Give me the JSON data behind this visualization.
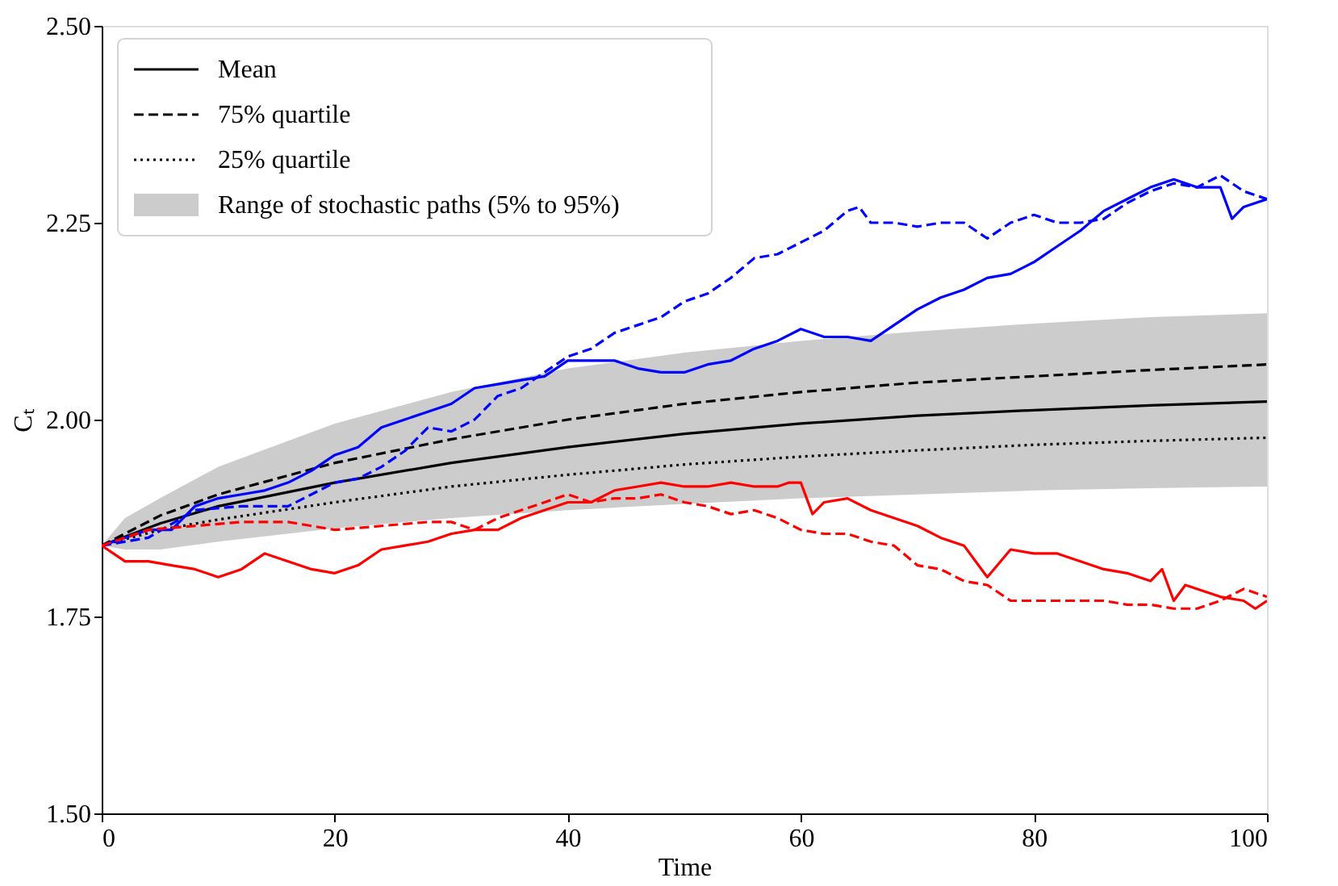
{
  "chart_data": {
    "type": "line",
    "xlabel": "Time",
    "ylabel": "Cₜ",
    "xlim": [
      0,
      100
    ],
    "xticks": [
      0,
      20,
      40,
      60,
      80,
      100
    ],
    "ylim": [
      1.5,
      2.5
    ],
    "yticks": [
      {
        "value": 1.5,
        "label": "1.50"
      },
      {
        "value": 1.75,
        "label": "1.75"
      },
      {
        "value": 2.0,
        "label": "2.00"
      },
      {
        "value": 2.25,
        "label": "2.25"
      },
      {
        "value": 2.5,
        "label": "2.50"
      }
    ],
    "grid": false,
    "legend": "top left",
    "series": [
      {
        "name": "Mean",
        "color": "#000000",
        "line_style": "solid",
        "x": [
          0,
          5,
          10,
          20,
          30,
          40,
          50,
          60,
          70,
          80,
          90,
          100
        ],
        "values": [
          1.84,
          1.868,
          1.89,
          1.92,
          1.945,
          1.965,
          1.982,
          1.995,
          2.005,
          2.012,
          2.018,
          2.023
        ]
      },
      {
        "name": "75% quartile",
        "color": "#000000",
        "line_style": "dashed",
        "x": [
          0,
          5,
          10,
          20,
          30,
          40,
          50,
          60,
          70,
          80,
          90,
          100
        ],
        "values": [
          1.84,
          1.878,
          1.905,
          1.945,
          1.975,
          2.0,
          2.02,
          2.035,
          2.047,
          2.055,
          2.063,
          2.07
        ]
      },
      {
        "name": "25% quartile",
        "color": "#000000",
        "line_style": "dotted",
        "x": [
          0,
          5,
          10,
          20,
          30,
          40,
          50,
          60,
          70,
          80,
          90,
          100
        ],
        "values": [
          1.84,
          1.86,
          1.873,
          1.895,
          1.915,
          1.93,
          1.943,
          1.953,
          1.961,
          1.968,
          1.973,
          1.977
        ]
      },
      {
        "name": "Range of stochastic paths (5% to 95%)",
        "type": "area",
        "color": "#cccccc",
        "x": [
          0,
          2,
          5,
          10,
          20,
          30,
          40,
          50,
          60,
          70,
          80,
          90,
          100
        ],
        "values": [
          null,
          null,
          null,
          null,
          null,
          null,
          null,
          null,
          null,
          null,
          null,
          null,
          null
        ],
        "lower": [
          1.84,
          1.835,
          1.835,
          1.845,
          1.862,
          1.875,
          1.885,
          1.893,
          1.9,
          1.905,
          1.91,
          1.913,
          1.915
        ],
        "upper": [
          1.84,
          1.875,
          1.9,
          1.94,
          1.995,
          2.035,
          2.065,
          2.085,
          2.1,
          2.112,
          2.122,
          2.13,
          2.135
        ]
      },
      {
        "color": "#0000ff",
        "line_style": "solid",
        "x": [
          0,
          2,
          4,
          6,
          8,
          10,
          12,
          14,
          16,
          18,
          20,
          22,
          24,
          26,
          28,
          30,
          32,
          34,
          36,
          38,
          40,
          42,
          44,
          46,
          48,
          50,
          52,
          54,
          56,
          58,
          60,
          62,
          64,
          66,
          68,
          70,
          72,
          74,
          76,
          78,
          80,
          82,
          84,
          86,
          88,
          90,
          92,
          94,
          96,
          97,
          98,
          100
        ],
        "values": [
          1.84,
          1.85,
          1.86,
          1.86,
          1.89,
          1.9,
          1.905,
          1.91,
          1.92,
          1.935,
          1.955,
          1.965,
          1.99,
          2.0,
          2.01,
          2.02,
          2.04,
          2.045,
          2.05,
          2.055,
          2.075,
          2.075,
          2.075,
          2.065,
          2.06,
          2.06,
          2.07,
          2.075,
          2.09,
          2.1,
          2.115,
          2.105,
          2.105,
          2.1,
          2.12,
          2.14,
          2.155,
          2.165,
          2.18,
          2.185,
          2.2,
          2.22,
          2.24,
          2.265,
          2.28,
          2.295,
          2.305,
          2.295,
          2.295,
          2.255,
          2.27,
          2.28
        ]
      },
      {
        "color": "#0000ff",
        "line_style": "dashed",
        "x": [
          0,
          4,
          8,
          12,
          14,
          16,
          18,
          20,
          22,
          24,
          26,
          28,
          30,
          32,
          34,
          36,
          38,
          40,
          42,
          44,
          46,
          48,
          50,
          52,
          54,
          56,
          58,
          60,
          62,
          64,
          65,
          66,
          68,
          70,
          72,
          74,
          76,
          78,
          80,
          82,
          84,
          86,
          88,
          90,
          92,
          94,
          96,
          98,
          100
        ],
        "values": [
          1.84,
          1.85,
          1.885,
          1.89,
          1.89,
          1.89,
          1.905,
          1.92,
          1.925,
          1.94,
          1.96,
          1.99,
          1.985,
          2.0,
          2.03,
          2.04,
          2.06,
          2.08,
          2.09,
          2.11,
          2.12,
          2.13,
          2.15,
          2.16,
          2.18,
          2.205,
          2.21,
          2.225,
          2.24,
          2.265,
          2.27,
          2.25,
          2.25,
          2.245,
          2.25,
          2.25,
          2.23,
          2.25,
          2.26,
          2.25,
          2.25,
          2.255,
          2.275,
          2.29,
          2.3,
          2.295,
          2.31,
          2.29,
          2.28
        ]
      },
      {
        "color": "#ff0000",
        "line_style": "solid",
        "x": [
          0,
          2,
          4,
          6,
          8,
          10,
          12,
          14,
          16,
          18,
          20,
          22,
          24,
          26,
          28,
          30,
          32,
          34,
          36,
          38,
          40,
          42,
          44,
          46,
          48,
          50,
          52,
          54,
          56,
          58,
          59,
          60,
          61,
          62,
          64,
          66,
          68,
          70,
          72,
          74,
          75,
          76,
          78,
          80,
          82,
          84,
          86,
          88,
          90,
          91,
          92,
          93,
          96,
          98,
          99,
          100
        ],
        "values": [
          1.84,
          1.82,
          1.82,
          1.815,
          1.81,
          1.8,
          1.81,
          1.83,
          1.82,
          1.81,
          1.805,
          1.815,
          1.835,
          1.84,
          1.845,
          1.855,
          1.86,
          1.86,
          1.875,
          1.885,
          1.895,
          1.895,
          1.91,
          1.915,
          1.92,
          1.915,
          1.915,
          1.92,
          1.915,
          1.915,
          1.92,
          1.92,
          1.88,
          1.895,
          1.9,
          1.885,
          1.875,
          1.865,
          1.85,
          1.84,
          1.82,
          1.8,
          1.835,
          1.83,
          1.83,
          1.82,
          1.81,
          1.805,
          1.795,
          1.81,
          1.77,
          1.79,
          1.775,
          1.77,
          1.76,
          1.77
        ]
      },
      {
        "color": "#ff0000",
        "line_style": "dashed",
        "x": [
          0,
          4,
          8,
          12,
          16,
          20,
          24,
          28,
          30,
          32,
          34,
          36,
          38,
          40,
          42,
          44,
          46,
          48,
          50,
          52,
          54,
          56,
          58,
          60,
          62,
          64,
          66,
          68,
          70,
          72,
          74,
          76,
          78,
          80,
          82,
          84,
          86,
          88,
          90,
          92,
          94,
          96,
          98,
          100
        ],
        "values": [
          1.84,
          1.86,
          1.865,
          1.87,
          1.87,
          1.86,
          1.865,
          1.87,
          1.87,
          1.86,
          1.875,
          1.885,
          1.895,
          1.905,
          1.895,
          1.9,
          1.9,
          1.905,
          1.895,
          1.89,
          1.88,
          1.885,
          1.875,
          1.86,
          1.855,
          1.855,
          1.845,
          1.84,
          1.815,
          1.81,
          1.795,
          1.79,
          1.77,
          1.77,
          1.77,
          1.77,
          1.77,
          1.765,
          1.765,
          1.76,
          1.76,
          1.77,
          1.785,
          1.775
        ]
      }
    ]
  }
}
